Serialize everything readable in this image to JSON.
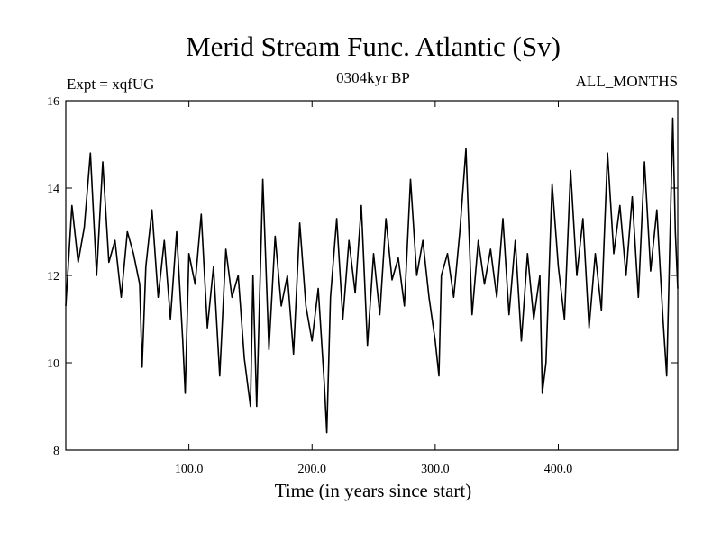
{
  "chart_data": {
    "type": "line",
    "title": "Merid Stream Func. Atlantic (Sv)",
    "subtitle_left": "Expt = xqfUG",
    "subtitle_center": "0304kyr BP",
    "subtitle_right": "ALL_MONTHS",
    "xlabel": "Time (in years since start)",
    "ylabel": "",
    "xlim": [
      0,
      497
    ],
    "ylim": [
      8,
      16
    ],
    "xticks": [
      100,
      200,
      300,
      400
    ],
    "xtick_labels": [
      "100.0",
      "200.0",
      "300.0",
      "400.0"
    ],
    "yticks": [
      8,
      10,
      12,
      14,
      16
    ],
    "ytick_labels": [
      "8",
      "10",
      "12",
      "14",
      "16"
    ],
    "grid": false,
    "series": [
      {
        "name": "Merid Stream Func. Atlantic",
        "color": "#000000",
        "x": [
          0,
          5,
          10,
          15,
          20,
          25,
          30,
          35,
          40,
          45,
          50,
          55,
          60,
          62,
          65,
          70,
          75,
          80,
          85,
          90,
          95,
          97,
          100,
          105,
          110,
          115,
          120,
          125,
          130,
          135,
          140,
          145,
          150,
          152,
          155,
          160,
          165,
          170,
          175,
          180,
          185,
          190,
          195,
          200,
          205,
          210,
          212,
          215,
          220,
          225,
          230,
          235,
          240,
          245,
          250,
          255,
          260,
          265,
          270,
          275,
          280,
          285,
          290,
          295,
          300,
          303,
          305,
          310,
          315,
          320,
          325,
          330,
          335,
          340,
          345,
          350,
          355,
          360,
          365,
          370,
          375,
          380,
          385,
          387,
          390,
          395,
          400,
          405,
          410,
          415,
          420,
          425,
          430,
          435,
          440,
          445,
          450,
          455,
          460,
          465,
          470,
          475,
          480,
          485,
          488,
          490,
          493,
          495,
          497
        ],
        "y": [
          11.3,
          13.6,
          12.3,
          13.1,
          14.8,
          12.0,
          14.6,
          12.3,
          12.8,
          11.5,
          13.0,
          12.5,
          11.8,
          9.9,
          12.2,
          13.5,
          11.5,
          12.8,
          11.0,
          13.0,
          10.5,
          9.3,
          12.5,
          11.8,
          13.4,
          10.8,
          12.2,
          9.7,
          12.6,
          11.5,
          12.0,
          10.1,
          9.0,
          12.0,
          9.0,
          14.2,
          10.3,
          12.9,
          11.3,
          12.0,
          10.2,
          13.2,
          11.3,
          10.5,
          11.7,
          9.5,
          8.4,
          11.5,
          13.3,
          11.0,
          12.8,
          11.6,
          13.6,
          10.4,
          12.5,
          11.1,
          13.3,
          11.9,
          12.4,
          11.3,
          14.2,
          12.0,
          12.8,
          11.5,
          10.5,
          9.7,
          12.0,
          12.5,
          11.5,
          13.0,
          14.9,
          11.1,
          12.8,
          11.8,
          12.6,
          11.5,
          13.3,
          11.1,
          12.8,
          10.5,
          12.5,
          11.0,
          12.0,
          9.3,
          10.0,
          14.1,
          12.2,
          11.0,
          14.4,
          12.0,
          13.3,
          10.8,
          12.5,
          11.2,
          14.8,
          12.5,
          13.6,
          12.0,
          13.8,
          11.5,
          14.6,
          12.1,
          13.5,
          11.0,
          9.7,
          12.0,
          15.6,
          13.0,
          11.7
        ]
      }
    ]
  }
}
